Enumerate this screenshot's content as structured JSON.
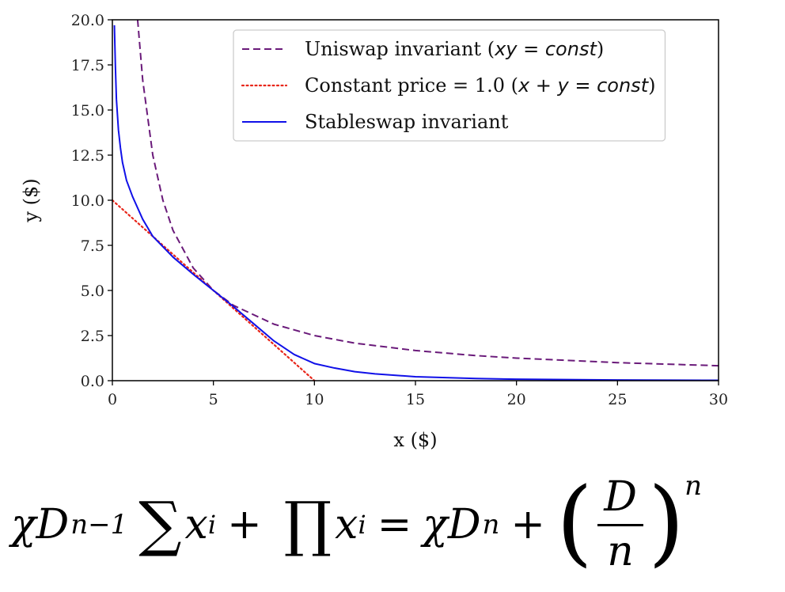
{
  "chart_data": {
    "type": "line",
    "title": "",
    "xlabel": "x ($)",
    "ylabel": "y ($)",
    "xlim": [
      0,
      30
    ],
    "ylim": [
      0,
      20
    ],
    "xticks": [
      "0",
      "5",
      "10",
      "15",
      "20",
      "25",
      "30"
    ],
    "yticks": [
      "0.0",
      "2.5",
      "5.0",
      "7.5",
      "10.0",
      "12.5",
      "15.0",
      "17.5",
      "20.0"
    ],
    "grid": false,
    "legend_position": "top-right",
    "series": [
      {
        "name": "Uniswap invariant (xy = const)",
        "legend_plain": "Uniswap invariant (",
        "legend_math": "xy = const",
        "legend_tail": ")",
        "style": "dashed",
        "color": "#6a1a7a",
        "x": [
          1.25,
          1.5,
          2,
          2.5,
          3,
          4,
          5,
          6,
          8,
          10,
          12,
          15,
          18,
          20,
          25,
          30
        ],
        "y": [
          20.0,
          16.67,
          12.5,
          10.0,
          8.33,
          6.25,
          5.0,
          4.17,
          3.13,
          2.5,
          2.08,
          1.67,
          1.39,
          1.25,
          1.0,
          0.83
        ]
      },
      {
        "name": "Constant price = 1.0 (x + y = const)",
        "legend_plain": "Constant price = 1.0 (",
        "legend_math": "x + y = const",
        "legend_tail": ")",
        "style": "dotted",
        "color": "#e8261a",
        "x": [
          0,
          10
        ],
        "y": [
          10,
          0
        ]
      },
      {
        "name": "Stableswap invariant",
        "legend_plain": "Stableswap invariant",
        "legend_math": "",
        "legend_tail": "",
        "style": "solid",
        "color": "#1010e8",
        "x": [
          0.1,
          0.15,
          0.2,
          0.3,
          0.4,
          0.5,
          0.7,
          1.0,
          1.5,
          2.0,
          3.0,
          4.0,
          5.0,
          6.0,
          7.0,
          8.0,
          9.0,
          10.0,
          11.0,
          12.0,
          13.0,
          15.0,
          18.0,
          20.0,
          25.0,
          30.0
        ],
        "y": [
          19.7,
          17.4,
          15.6,
          13.9,
          12.9,
          12.1,
          11.1,
          10.2,
          8.95,
          8.0,
          6.85,
          5.9,
          5.0,
          4.1,
          3.15,
          2.2,
          1.45,
          0.95,
          0.7,
          0.5,
          0.38,
          0.22,
          0.12,
          0.08,
          0.04,
          0.02
        ]
      }
    ]
  },
  "formula": {
    "chi": "χ",
    "D": "D",
    "exp1": "n−1",
    "sum": "∑",
    "prod": "∏",
    "x": "x",
    "sub_i": "i",
    "plus": "+",
    "equals": "=",
    "exp2": "n",
    "lparen": "(",
    "rparen": ")",
    "frac_num": "D",
    "frac_den": "n",
    "exp3": "n"
  }
}
